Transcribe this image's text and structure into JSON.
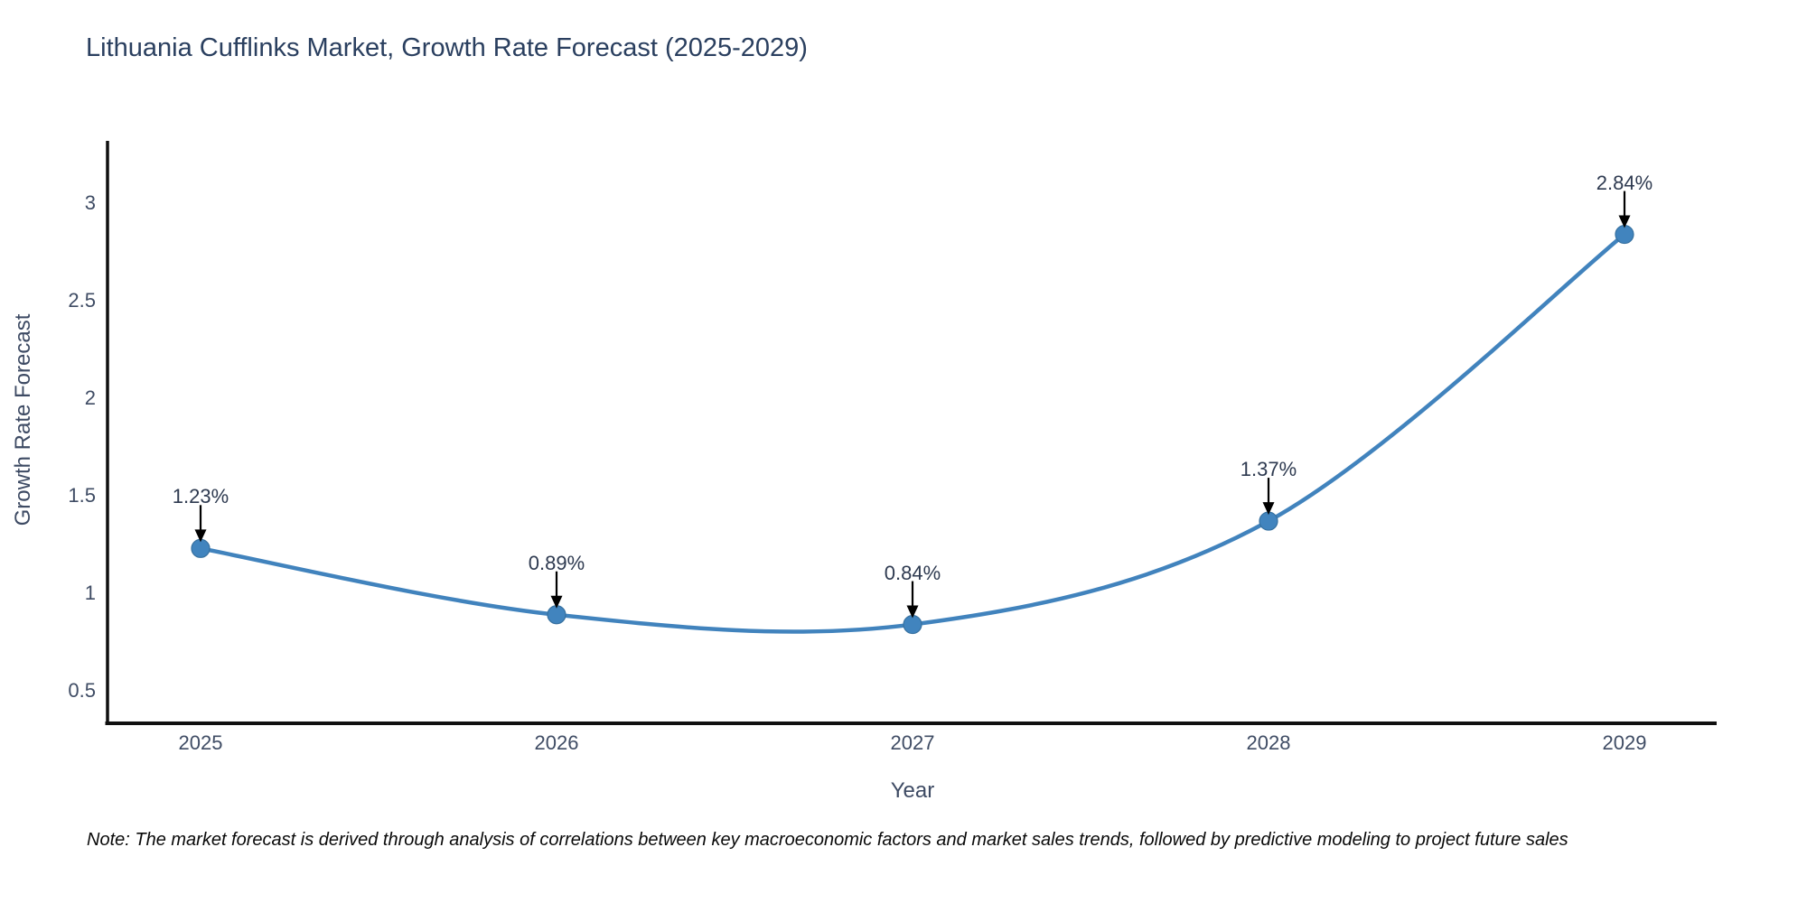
{
  "page": {
    "background": "#ffffff"
  },
  "chart_data": {
    "type": "line",
    "title": "Lithuania Cufflinks Market, Growth Rate Forecast (2025-2029)",
    "xlabel": "Year",
    "ylabel": "Growth Rate Forecast",
    "x": [
      "2025",
      "2026",
      "2027",
      "2028",
      "2029"
    ],
    "series": [
      {
        "name": "Growth Rate Forecast",
        "values": [
          1.23,
          0.89,
          0.84,
          1.37,
          2.84
        ]
      }
    ],
    "point_labels": [
      "1.23%",
      "0.89%",
      "0.84%",
      "1.37%",
      "2.84%"
    ],
    "y_ticks": [
      {
        "label": "0.5",
        "value": 0.5
      },
      {
        "label": "1",
        "value": 1.0
      },
      {
        "label": "1.5",
        "value": 1.5
      },
      {
        "label": "2",
        "value": 2.0
      },
      {
        "label": "2.5",
        "value": 2.5
      },
      {
        "label": "3",
        "value": 3.0
      }
    ],
    "ylim": [
      0.34,
      3.33
    ],
    "grid": false,
    "legend_position": "none",
    "line_color": "#4183bd",
    "marker_color": "#4184be",
    "marker_edge_color": "#36709f",
    "arrow_color": "#000000",
    "axis_color": "#101010"
  },
  "note": "Note: The market forecast is derived through analysis of correlations between key macroeconomic factors and market sales trends, followed by predictive modeling to project future sales",
  "colors": {
    "title": "#2a3f5f",
    "tick_label": "#3f4c64",
    "annotation": "#2e3a50",
    "note": "#0a0a0a"
  }
}
